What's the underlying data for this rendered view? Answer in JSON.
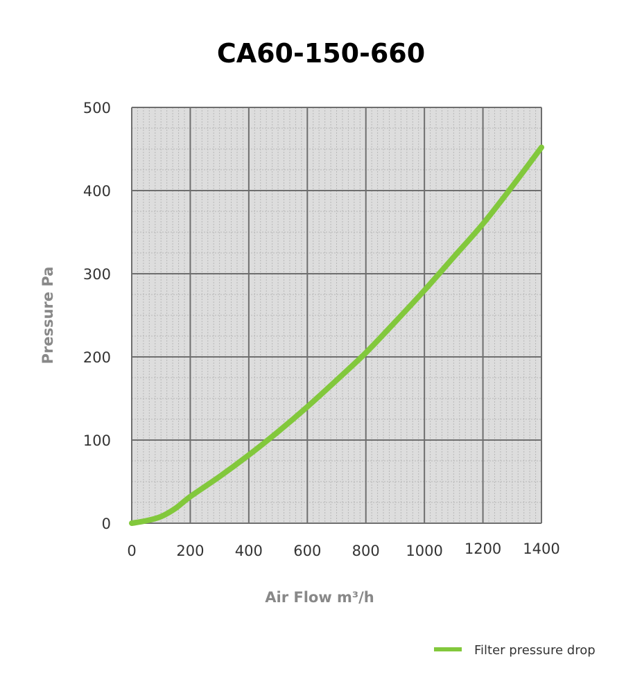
{
  "chart_data": {
    "type": "line",
    "title": "CA60-150-660",
    "xlabel": "Air Flow m³/h",
    "ylabel": "Pressure Pa",
    "xlim": [
      0,
      1400
    ],
    "ylim": [
      0,
      500
    ],
    "xticks": [
      0,
      200,
      400,
      600,
      800,
      1000,
      1200,
      1400
    ],
    "yticks": [
      0,
      100,
      200,
      300,
      400,
      500
    ],
    "grid": true,
    "legend_position": "bottom-right",
    "background_color": "#dddddd",
    "series": [
      {
        "name": "Filter pressure drop",
        "color": "#82c83c",
        "x": [
          0,
          50,
          100,
          150,
          200,
          300,
          400,
          500,
          600,
          700,
          800,
          900,
          1000,
          1100,
          1200,
          1300,
          1400
        ],
        "y": [
          0,
          3,
          8,
          18,
          32,
          56,
          82,
          110,
          140,
          172,
          205,
          242,
          280,
          320,
          360,
          405,
          452
        ]
      }
    ]
  }
}
